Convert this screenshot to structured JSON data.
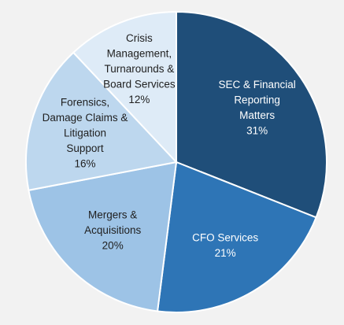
{
  "chart_data": {
    "type": "pie",
    "start_angle_deg": 0,
    "direction": "clockwise",
    "slices": [
      {
        "name": "SEC & Financial Reporting Matters",
        "label_lines": [
          "SEC & Financial",
          "Reporting",
          "Matters"
        ],
        "percent_label": "31%",
        "value": 31,
        "color": "#1f4e79",
        "text_color": "#ffffff"
      },
      {
        "name": "CFO Services",
        "label_lines": [
          "CFO Services"
        ],
        "percent_label": "21%",
        "value": 21,
        "color": "#2e75b6",
        "text_color": "#ffffff"
      },
      {
        "name": "Mergers & Acquisitions",
        "label_lines": [
          "Mergers &",
          "Acquisitions"
        ],
        "percent_label": "20%",
        "value": 20,
        "color": "#9dc3e6",
        "text_color": "#1f1f1f"
      },
      {
        "name": "Forensics, Damage Claims & Litigation Support",
        "label_lines": [
          "Forensics,",
          "Damage Claims &",
          "Litigation",
          "Support"
        ],
        "percent_label": "16%",
        "value": 16,
        "color": "#bdd7ee",
        "text_color": "#1f1f1f"
      },
      {
        "name": "Crisis Management, Turnarounds & Board Services",
        "label_lines": [
          "Crisis",
          "Management,",
          "Turnarounds &",
          "Board Services"
        ],
        "percent_label": "12%",
        "value": 12,
        "color": "#deebf7",
        "text_color": "#1f1f1f"
      }
    ],
    "legend": "none"
  }
}
